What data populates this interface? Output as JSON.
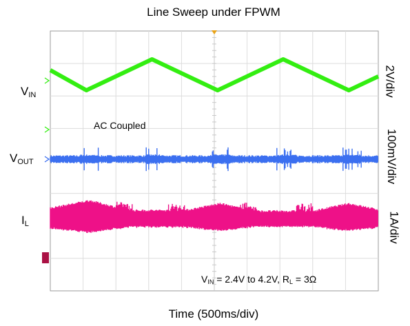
{
  "chart_data": {
    "type": "line",
    "title": "Line Sweep under FPWM",
    "xlabel": "Time (500ms/div)",
    "grid": true,
    "divisions": {
      "x": 10,
      "y": 8
    },
    "series": [
      {
        "name": "VIN",
        "label_main": "V",
        "label_sub": "IN",
        "scale": "2V/div",
        "color": "#33ee11",
        "x": [
          0,
          1.1,
          3.1,
          5.1,
          7.1,
          9.1,
          10
        ],
        "y": [
          1.3,
          0,
          2,
          0,
          2,
          0,
          0.9
        ]
      },
      {
        "name": "VOUT",
        "label_main": "V",
        "label_sub": "OUT",
        "scale": "100mV/div",
        "color": "#3b6ff0",
        "x": [
          0,
          10
        ],
        "y": [
          0,
          0
        ]
      },
      {
        "name": "IL",
        "label_main": "I",
        "label_sub": "L",
        "scale": "1A/div",
        "color": "#ee1188",
        "x": [
          0,
          1.2,
          2.4,
          4.1,
          5.2,
          6.2,
          8.0,
          9.1,
          10.0
        ],
        "y": [
          0.75,
          1.25,
          0.6,
          0.6,
          1.05,
          0.55,
          0.55,
          1.05,
          0.65
        ]
      }
    ],
    "annotations": {
      "coupling": "AC Coupled",
      "conditions_parts": [
        "V",
        "IN",
        " = 2.4V  to  4.2V,  R",
        "L",
        " = 3Ω"
      ]
    }
  }
}
